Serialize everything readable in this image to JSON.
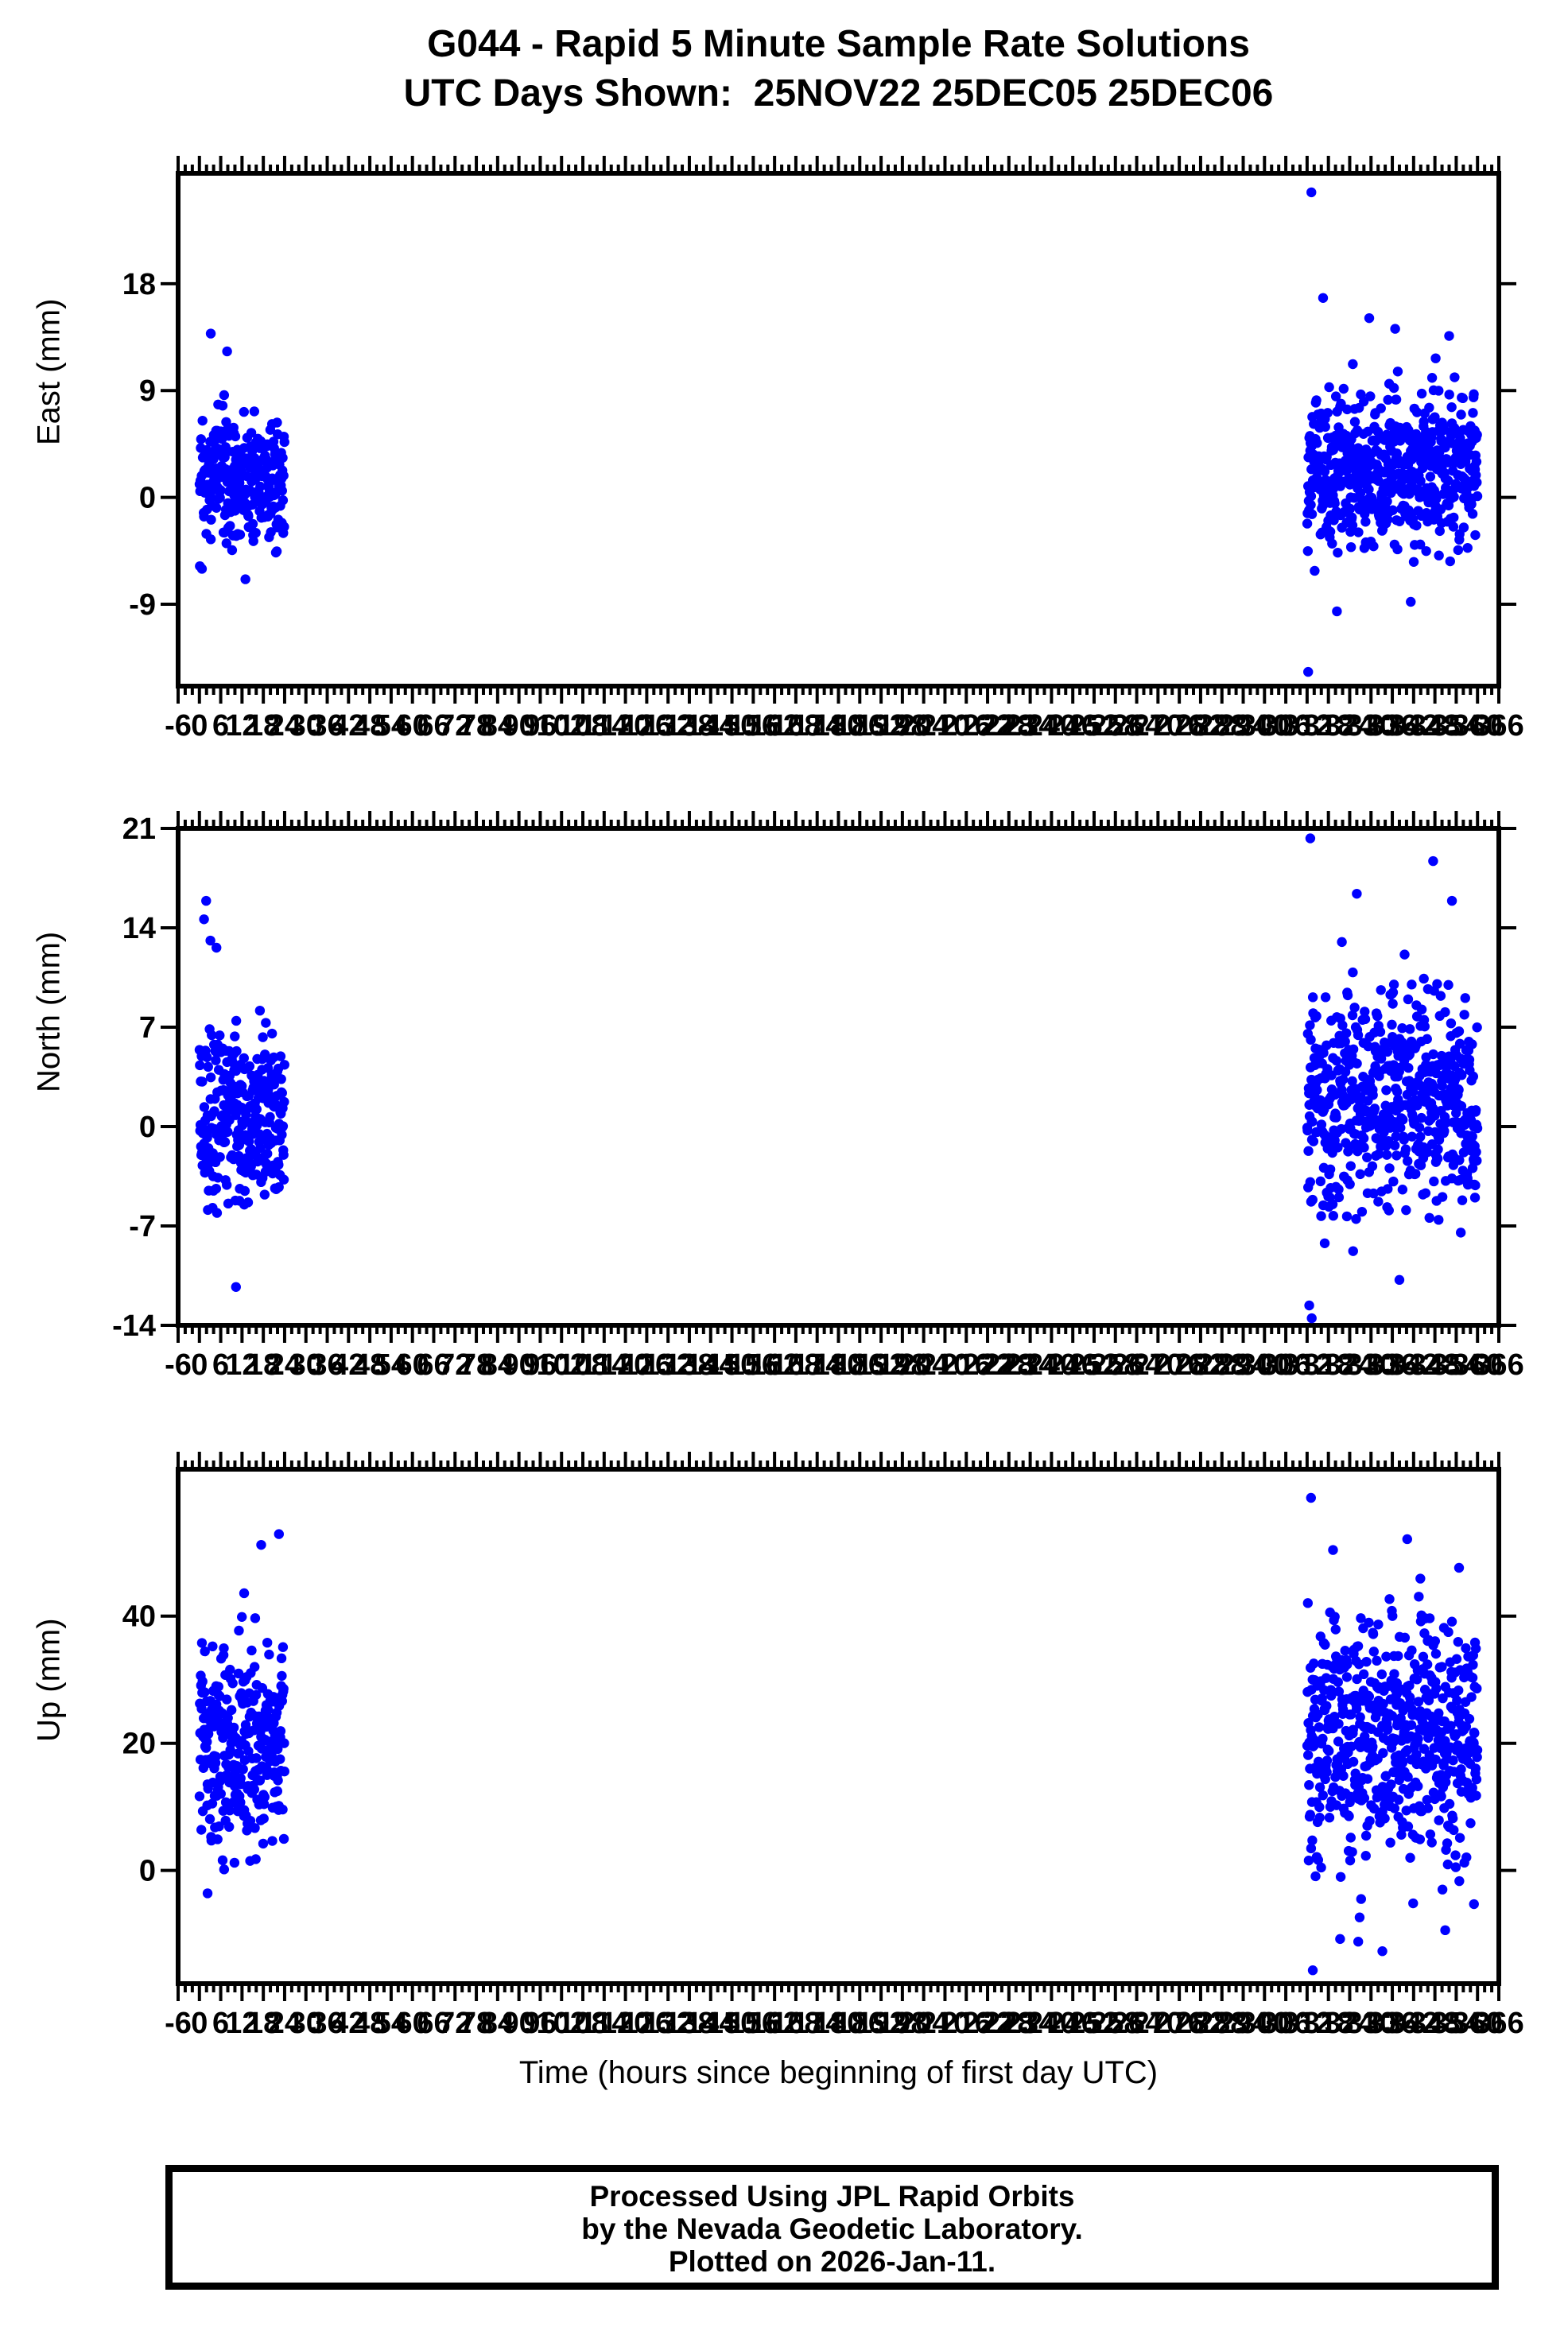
{
  "title": {
    "line1": "G044 - Rapid 5 Minute Sample Rate Solutions",
    "line2": "UTC Days Shown:  25NOV22 25DEC05 25DEC06"
  },
  "footer": {
    "line1": "Processed Using JPL Rapid Orbits",
    "line2": "by the Nevada Geodetic Laboratory.",
    "line3": "Plotted on 2026-Jan-11."
  },
  "colors": {
    "marker": "#0000ff",
    "axis": "#000000",
    "background": "#ffffff"
  },
  "chart_data": {
    "type": "scatter",
    "x_axis": {
      "label": "Time (hours since beginning of first day UTC)",
      "min": -6,
      "max": 366,
      "major_tick_step": 6,
      "minor_tick_step": 2,
      "tick_labels": [
        -6,
        0,
        6,
        12,
        18,
        24,
        30,
        36,
        42,
        48,
        54,
        60,
        66,
        72,
        78,
        84,
        90,
        96,
        102,
        108,
        114,
        120,
        126,
        132,
        138,
        144,
        150,
        156,
        162,
        168,
        174,
        180,
        186,
        192,
        198,
        204,
        210,
        216,
        222,
        228,
        234,
        240,
        246,
        252,
        258,
        264,
        270,
        276,
        282,
        288,
        294,
        300,
        306,
        312,
        318,
        324,
        330,
        336,
        342,
        348,
        354,
        360,
        366
      ]
    },
    "panels": [
      {
        "name": "east",
        "ylabel": "East (mm)",
        "yticks": [
          18,
          9,
          0,
          -9
        ],
        "ylim": [
          -15.9,
          27.3
        ],
        "marker_color": "#0000ff",
        "clusters": [
          {
            "x_start": 0,
            "x_end": 24,
            "n": 288,
            "mean": 1.2,
            "sd": 2.7,
            "ymin": -7.5,
            "ymax": 9.8
          },
          {
            "x_start": 312,
            "x_end": 360,
            "n": 576,
            "mean": 2.4,
            "sd": 3.2,
            "ymin": -8.6,
            "ymax": 13.0
          }
        ],
        "outliers": [
          [
            313.2,
            25.7
          ],
          [
            312.3,
            -14.7
          ],
          [
            316.5,
            16.8
          ],
          [
            329.5,
            15.1
          ],
          [
            336.8,
            14.2
          ],
          [
            352.0,
            13.6
          ],
          [
            3.2,
            13.8
          ],
          [
            7.8,
            12.3
          ],
          [
            320.4,
            -9.6
          ],
          [
            341.2,
            -8.8
          ]
        ]
      },
      {
        "name": "north",
        "ylabel": "North (mm)",
        "yticks": [
          21,
          14,
          7,
          0,
          -7,
          -14
        ],
        "ylim": [
          -14,
          21
        ],
        "marker_color": "#0000ff",
        "clusters": [
          {
            "x_start": 0,
            "x_end": 24,
            "n": 288,
            "mean": 0.8,
            "sd": 3.0,
            "ymin": -8.3,
            "ymax": 12.8
          },
          {
            "x_start": 312,
            "x_end": 360,
            "n": 576,
            "mean": 1.8,
            "sd": 4.0,
            "ymin": -9.0,
            "ymax": 14.0
          }
        ],
        "outliers": [
          [
            1.9,
            15.9
          ],
          [
            1.3,
            14.6
          ],
          [
            3.1,
            13.1
          ],
          [
            4.8,
            12.6
          ],
          [
            10.3,
            -11.3
          ],
          [
            312.9,
            20.3
          ],
          [
            347.5,
            18.7
          ],
          [
            326.0,
            16.4
          ],
          [
            352.8,
            15.9
          ],
          [
            312.6,
            -12.6
          ],
          [
            313.3,
            -13.5
          ],
          [
            338.0,
            -10.8
          ]
        ]
      },
      {
        "name": "up",
        "ylabel": "Up (mm)",
        "yticks": [
          40,
          20,
          0
        ],
        "ylim": [
          -17.8,
          63.1
        ],
        "marker_color": "#0000ff",
        "clusters": [
          {
            "x_start": 0,
            "x_end": 24,
            "n": 288,
            "mean": 19.5,
            "sd": 7.5,
            "ymin": -4.5,
            "ymax": 40.5
          },
          {
            "x_start": 312,
            "x_end": 360,
            "n": 576,
            "mean": 21.0,
            "sd": 9.5,
            "ymin": -13.0,
            "ymax": 45.0
          }
        ],
        "outliers": [
          [
            17.4,
            51.2
          ],
          [
            22.4,
            52.9
          ],
          [
            12.6,
            43.6
          ],
          [
            2.3,
            -3.6
          ],
          [
            313.1,
            58.6
          ],
          [
            319.3,
            50.4
          ],
          [
            340.2,
            52.1
          ],
          [
            354.8,
            47.6
          ],
          [
            343.9,
            45.9
          ],
          [
            313.6,
            -15.7
          ],
          [
            326.4,
            -11.2
          ],
          [
            333.2,
            -12.7
          ],
          [
            350.9,
            -9.4
          ],
          [
            359.0,
            -5.3
          ]
        ]
      }
    ]
  }
}
